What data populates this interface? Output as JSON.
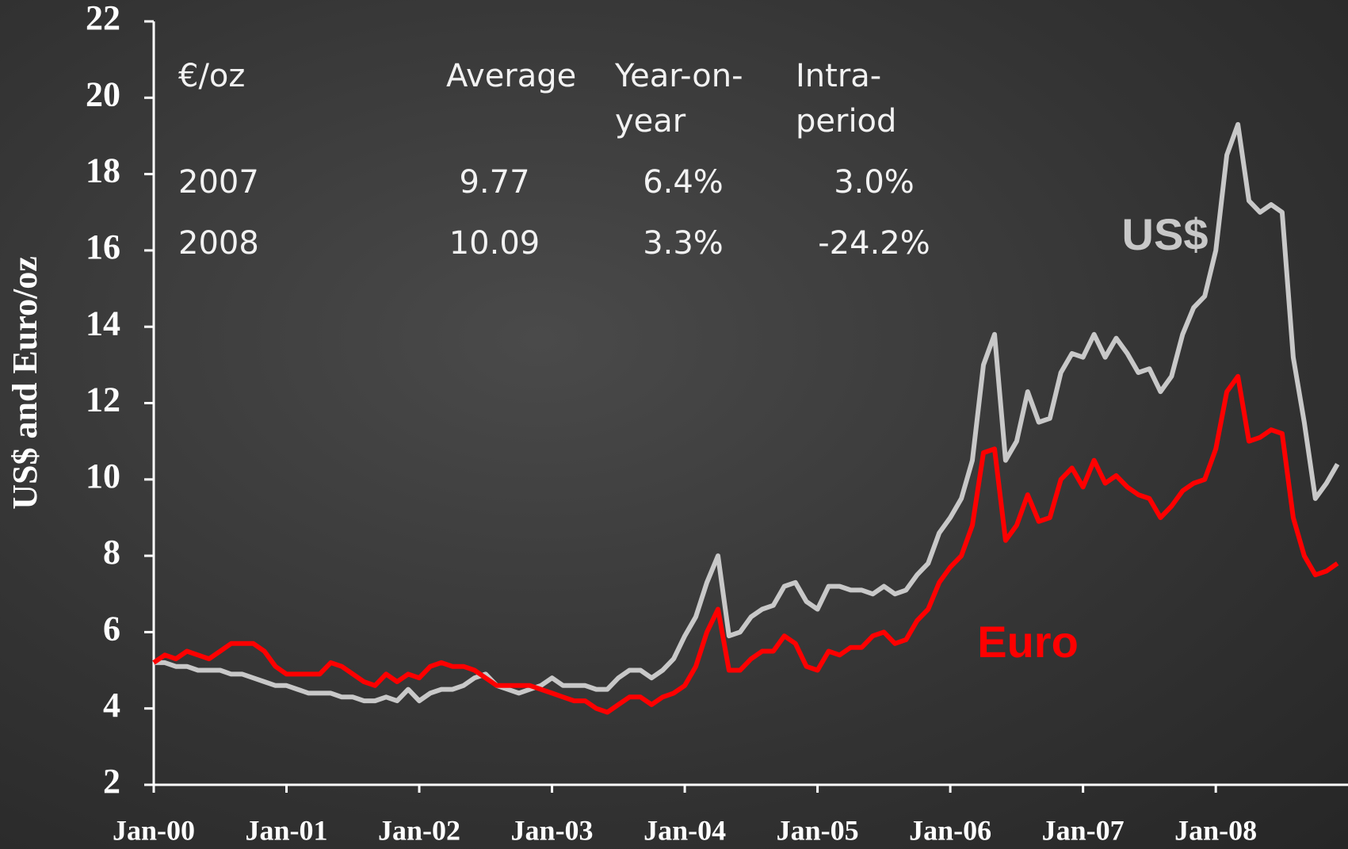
{
  "chart_data": {
    "type": "line",
    "y_label": "US$ and Euro/oz",
    "ylim": [
      2,
      22
    ],
    "yticks": [
      2,
      4,
      6,
      8,
      10,
      12,
      14,
      16,
      18,
      20,
      22
    ],
    "categories": [
      "Jan-00",
      null,
      null,
      null,
      null,
      null,
      null,
      null,
      null,
      null,
      null,
      null,
      "Jan-01",
      null,
      null,
      null,
      null,
      null,
      null,
      null,
      null,
      null,
      null,
      null,
      "Jan-02",
      null,
      null,
      null,
      null,
      null,
      null,
      null,
      null,
      null,
      null,
      null,
      "Jan-03",
      null,
      null,
      null,
      null,
      null,
      null,
      null,
      null,
      null,
      null,
      null,
      "Jan-04",
      null,
      null,
      null,
      null,
      null,
      null,
      null,
      null,
      null,
      null,
      null,
      "Jan-05",
      null,
      null,
      null,
      null,
      null,
      null,
      null,
      null,
      null,
      null,
      null,
      "Jan-06",
      null,
      null,
      null,
      null,
      null,
      null,
      null,
      null,
      null,
      null,
      null,
      "Jan-07",
      null,
      null,
      null,
      null,
      null,
      null,
      null,
      null,
      null,
      null,
      null,
      "Jan-08",
      null,
      null,
      null,
      null,
      null,
      null,
      null,
      null,
      null,
      null,
      null
    ],
    "series": [
      {
        "name": "US$",
        "color": "#c8c8c8",
        "values": [
          5.2,
          5.2,
          5.1,
          5.1,
          5.0,
          5.0,
          5.0,
          4.9,
          4.9,
          4.8,
          4.7,
          4.6,
          4.6,
          4.5,
          4.4,
          4.4,
          4.4,
          4.3,
          4.3,
          4.2,
          4.2,
          4.3,
          4.2,
          4.5,
          4.2,
          4.4,
          4.5,
          4.5,
          4.6,
          4.8,
          4.9,
          4.6,
          4.5,
          4.4,
          4.5,
          4.6,
          4.8,
          4.6,
          4.6,
          4.6,
          4.5,
          4.5,
          4.8,
          5.0,
          5.0,
          4.8,
          5.0,
          5.3,
          5.9,
          6.4,
          7.3,
          8.0,
          5.9,
          6.0,
          6.4,
          6.6,
          6.7,
          7.2,
          7.3,
          6.8,
          6.6,
          7.2,
          7.2,
          7.1,
          7.1,
          7.0,
          7.2,
          7.0,
          7.1,
          7.5,
          7.8,
          8.6,
          9.0,
          9.5,
          10.5,
          13.0,
          13.8,
          10.5,
          11.0,
          12.3,
          11.5,
          11.6,
          12.8,
          13.3,
          13.2,
          13.8,
          13.2,
          13.7,
          13.3,
          12.8,
          12.9,
          12.3,
          12.7,
          13.8,
          14.5,
          14.8,
          16.0,
          18.5,
          19.3,
          17.3,
          17.0,
          17.2,
          17.0,
          13.2,
          11.5,
          9.5,
          9.9,
          10.4
        ]
      },
      {
        "name": "Euro",
        "color": "#ff0000",
        "values": [
          5.2,
          5.4,
          5.3,
          5.5,
          5.4,
          5.3,
          5.5,
          5.7,
          5.7,
          5.7,
          5.5,
          5.1,
          4.9,
          4.9,
          4.9,
          4.9,
          5.2,
          5.1,
          4.9,
          4.7,
          4.6,
          4.9,
          4.7,
          4.9,
          4.8,
          5.1,
          5.2,
          5.1,
          5.1,
          5.0,
          4.8,
          4.6,
          4.6,
          4.6,
          4.6,
          4.5,
          4.4,
          4.3,
          4.2,
          4.2,
          4.0,
          3.9,
          4.1,
          4.3,
          4.3,
          4.1,
          4.3,
          4.4,
          4.6,
          5.1,
          6.0,
          6.6,
          5.0,
          5.0,
          5.3,
          5.5,
          5.5,
          5.9,
          5.7,
          5.1,
          5.0,
          5.5,
          5.4,
          5.6,
          5.6,
          5.9,
          6.0,
          5.7,
          5.8,
          6.3,
          6.6,
          7.3,
          7.7,
          8.0,
          8.8,
          10.7,
          10.8,
          8.4,
          8.8,
          9.6,
          8.9,
          9.0,
          10.0,
          10.3,
          9.8,
          10.5,
          9.9,
          10.1,
          9.8,
          9.6,
          9.5,
          9.0,
          9.3,
          9.7,
          9.9,
          10.0,
          10.8,
          12.3,
          12.7,
          11.0,
          11.1,
          11.3,
          11.2,
          9.0,
          8.0,
          7.5,
          7.6,
          7.8
        ]
      }
    ],
    "table": {
      "header": [
        "€/oz",
        "Average",
        "Year-on-year",
        "Intra-period"
      ],
      "rows": [
        [
          "2007",
          "9.77",
          "6.4%",
          "3.0%"
        ],
        [
          "2008",
          "10.09",
          "3.3%",
          "-24.2%"
        ]
      ]
    }
  }
}
